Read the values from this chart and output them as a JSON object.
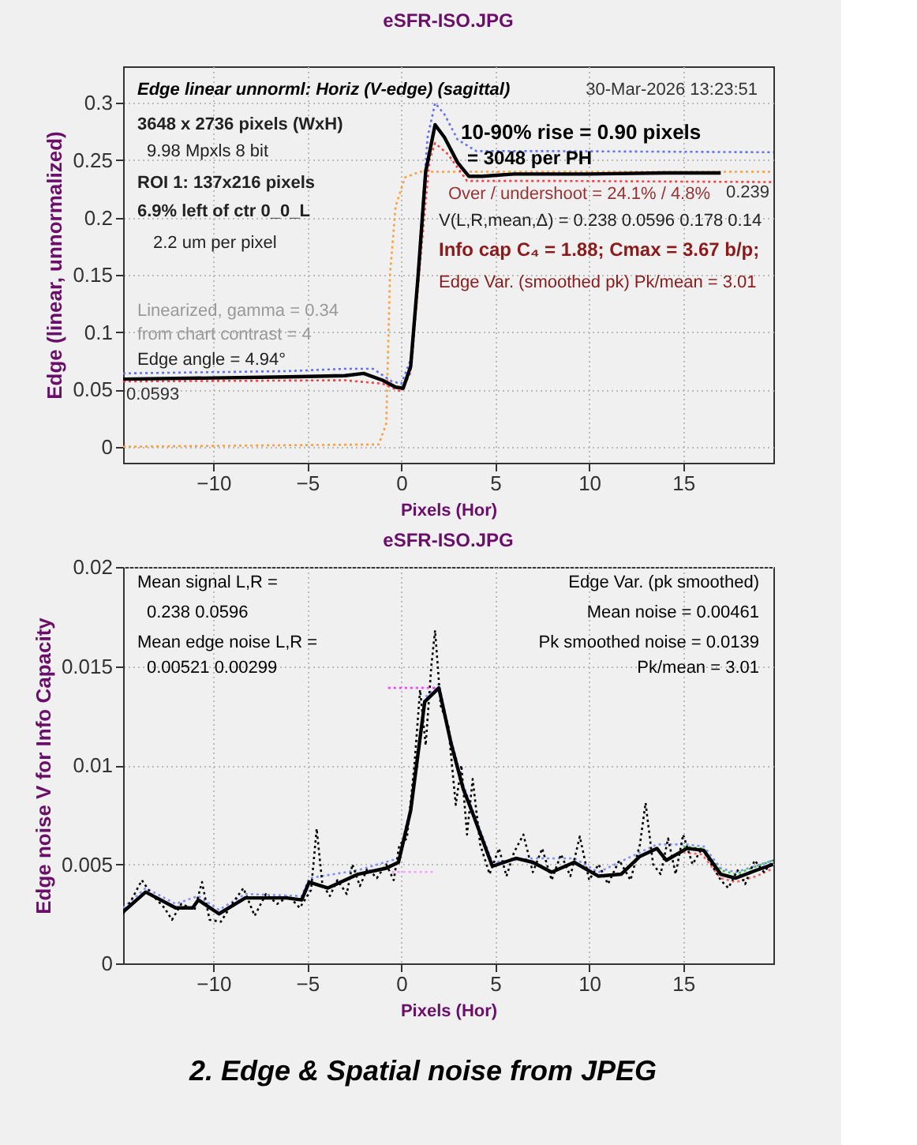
{
  "chart_data": [
    {
      "type": "line",
      "title": "eSFR-ISO.JPG",
      "xlabel": "Pixels (Hor)",
      "ylabel": "Edge (linear, unnormalized)",
      "xlim": [
        -14.8,
        19.8
      ],
      "ylim": [
        -0.014,
        0.332
      ],
      "xticks": [
        -10,
        -5,
        0,
        5,
        10,
        15
      ],
      "yticks": [
        0,
        0.05,
        0.1,
        0.15,
        0.2,
        0.25,
        0.3
      ],
      "grid": true,
      "legend": false,
      "series": [
        {
          "color": "#ffa040",
          "line_style": "dotted",
          "x": [
            -14.8,
            -1.2,
            -0.8,
            -0.6,
            -0.3,
            0.2,
            1,
            19.8
          ],
          "values": [
            0,
            0.002,
            0.02,
            0.15,
            0.21,
            0.235,
            0.24,
            0.24
          ]
        },
        {
          "color": "#6070ff",
          "line_style": "dotted",
          "x": [
            -14.8,
            -6,
            -3,
            -1.5,
            -0.5,
            0,
            0.6,
            1.0,
            1.4,
            1.8,
            2.3,
            3,
            4,
            8,
            19.8
          ],
          "values": [
            0.064,
            0.066,
            0.068,
            0.068,
            0.057,
            0.055,
            0.08,
            0.18,
            0.27,
            0.3,
            0.29,
            0.268,
            0.258,
            0.258,
            0.257
          ]
        },
        {
          "color": "#ff4040",
          "line_style": "dotted",
          "x": [
            -14.8,
            -3,
            -1,
            0,
            0.5,
            1,
            1.5,
            1.8,
            2.5,
            3.5,
            8,
            19.8
          ],
          "values": [
            0.057,
            0.058,
            0.055,
            0.048,
            0.065,
            0.16,
            0.25,
            0.265,
            0.255,
            0.232,
            0.232,
            0.231
          ]
        },
        {
          "color": "#000000",
          "line_style": "solid",
          "x": [
            -14.8,
            -10,
            -6,
            -3,
            -2,
            -1,
            -0.3,
            0.1,
            0.5,
            0.9,
            1.3,
            1.8,
            2.3,
            3,
            3.6,
            4.3,
            6,
            10,
            14,
            17
          ],
          "values": [
            0.059,
            0.06,
            0.061,
            0.062,
            0.064,
            0.058,
            0.052,
            0.051,
            0.07,
            0.15,
            0.24,
            0.281,
            0.27,
            0.248,
            0.236,
            0.236,
            0.238,
            0.238,
            0.239,
            0.239
          ]
        }
      ],
      "annotations": [
        "Edge linear unnorml: Horiz (V-edge) (sagittal)",
        "30-Mar-2026 13:23:51",
        "3648 x 2736 pixels (WxH)",
        "9.98 Mpxls   8 bit",
        "ROI 1:  137x216 pixels",
        "6.9% left of ctr  0_0_L",
        "2.2 um per pixel",
        "Linearized, gamma = 0.34",
        "from chart contrast = 4",
        "Edge angle = 4.94°",
        "0.0593",
        "0.239",
        "10-90% rise = 0.90 pixels",
        "= 3048 per PH",
        "Over / undershoot = 24.1% /  4.8%",
        "V(L,R,mean,Δ) = 0.238  0.0596  0.178  0.14",
        "Info cap C₄ = 1.88;  Cmax = 3.67 b/p;",
        "Edge Var. (smoothed pk)  Pk/mean = 3.01"
      ]
    },
    {
      "type": "line",
      "title": "eSFR-ISO.JPG",
      "xlabel": "Pixels (Hor)",
      "ylabel": "Edge noise V for Info Capacity",
      "xlim": [
        -14.8,
        19.8
      ],
      "ylim": [
        0,
        0.02
      ],
      "xticks": [
        -10,
        -5,
        0,
        5,
        10,
        15
      ],
      "yticks": [
        0,
        0.005,
        0.01,
        0.015,
        0.02
      ],
      "grid": true,
      "legend": false,
      "series": [
        {
          "color": "#8090ff",
          "line_style": "dotted",
          "x": [
            -14.8,
            -13.6,
            -12,
            -10.8,
            -9.7,
            -8.3,
            -5.3,
            -4.9,
            -2.3,
            -0.15,
            0.5,
            1.25,
            2.0,
            2.65,
            3.3,
            4.85,
            7.0,
            9.2,
            10.5,
            12.7,
            13.6,
            15.2,
            16.1,
            17,
            17.8,
            19.8
          ],
          "values": [
            0.0028,
            0.0038,
            0.003,
            0.0034,
            0.0027,
            0.0035,
            0.0034,
            0.0043,
            0.0047,
            0.0053,
            0.0079,
            0.0134,
            0.0141,
            0.0113,
            0.009,
            0.0051,
            0.0053,
            0.0053,
            0.0046,
            0.0056,
            0.006,
            0.006,
            0.0059,
            0.0048,
            0.0046,
            0.0052
          ]
        },
        {
          "color": "#ff6060",
          "line_style": "dotted",
          "x": [
            15,
            16,
            17,
            17.8,
            18.9,
            19.8
          ],
          "values": [
            0.0056,
            0.0055,
            0.0043,
            0.0041,
            0.0044,
            0.0048
          ]
        },
        {
          "color": "#40c040",
          "line_style": "dotted",
          "x": [
            15,
            16,
            17,
            17.8,
            18.9,
            19.8
          ],
          "values": [
            0.0059,
            0.0058,
            0.0047,
            0.0045,
            0.0049,
            0.0052
          ]
        },
        {
          "color": "#000000",
          "line_style": "dotted",
          "x": [
            -14.8,
            -14.3,
            -13.8,
            -13.3,
            -12.6,
            -12.2,
            -11.7,
            -11.0,
            -10.6,
            -10.2,
            -9.6,
            -9.0,
            -8.4,
            -7.8,
            -7.2,
            -6.6,
            -6.0,
            -5.4,
            -4.8,
            -4.5,
            -4.2,
            -3.8,
            -3.4,
            -2.9,
            -2.6,
            -2.2,
            -1.8,
            -1.3,
            -0.8,
            -0.4,
            -0.1,
            0.3,
            0.7,
            1.0,
            1.3,
            1.6,
            1.8,
            2.1,
            2.5,
            2.9,
            3.2,
            3.5,
            3.8,
            4.2,
            4.7,
            5.2,
            5.6,
            6.0,
            6.5,
            7.0,
            7.5,
            8.0,
            8.5,
            9.0,
            9.5,
            10.0,
            10.5,
            11.0,
            11.6,
            12.2,
            12.7,
            13.0,
            13.4,
            13.8,
            14.2,
            14.6,
            15.0,
            15.5,
            16.0,
            16.5,
            17.0,
            17.4,
            17.9,
            18.3,
            18.8,
            19.3,
            19.8
          ],
          "values": [
            0.0025,
            0.0033,
            0.0042,
            0.0035,
            0.0028,
            0.0022,
            0.003,
            0.0027,
            0.0041,
            0.0022,
            0.0021,
            0.003,
            0.0038,
            0.0024,
            0.0035,
            0.003,
            0.0034,
            0.0028,
            0.0037,
            0.0068,
            0.004,
            0.0034,
            0.0042,
            0.0035,
            0.005,
            0.0039,
            0.0048,
            0.0043,
            0.005,
            0.0042,
            0.006,
            0.0063,
            0.01,
            0.0138,
            0.011,
            0.015,
            0.0168,
            0.013,
            0.012,
            0.008,
            0.01,
            0.0065,
            0.0093,
            0.006,
            0.0045,
            0.0058,
            0.0044,
            0.0056,
            0.0065,
            0.0046,
            0.0058,
            0.0042,
            0.0055,
            0.0044,
            0.0064,
            0.0042,
            0.005,
            0.004,
            0.0052,
            0.0042,
            0.006,
            0.0081,
            0.005,
            0.0045,
            0.0063,
            0.0045,
            0.0065,
            0.005,
            0.0058,
            0.005,
            0.0042,
            0.0038,
            0.0047,
            0.004,
            0.0052,
            0.0046,
            0.0052
          ]
        },
        {
          "color": "#000000",
          "line_style": "solid",
          "x": [
            -14.8,
            -13.6,
            -12,
            -11.1,
            -10.8,
            -9.7,
            -8.3,
            -6.1,
            -5.3,
            -4.9,
            -3.9,
            -2.3,
            -0.8,
            -0.15,
            0.5,
            1.25,
            2.0,
            2.65,
            3.3,
            3.75,
            4.85,
            6.1,
            7.0,
            8.0,
            9.2,
            10.5,
            11.7,
            12.7,
            13.6,
            14.1,
            15.2,
            16.1,
            17,
            17.8,
            18.9,
            19.8
          ],
          "values": [
            0.0026,
            0.0036,
            0.0028,
            0.0028,
            0.0032,
            0.0025,
            0.0033,
            0.0033,
            0.0032,
            0.0041,
            0.0038,
            0.0045,
            0.0048,
            0.0051,
            0.0077,
            0.0132,
            0.0139,
            0.0111,
            0.0088,
            0.0077,
            0.0049,
            0.0053,
            0.0051,
            0.0046,
            0.0051,
            0.0044,
            0.0045,
            0.0054,
            0.0058,
            0.0052,
            0.0058,
            0.0057,
            0.0045,
            0.0043,
            0.0047,
            0.005
          ]
        },
        {
          "color": "#ff40ff",
          "line_style": "dotted",
          "x": [
            -0.7,
            1.8
          ],
          "values": [
            0.0139,
            0.0139
          ]
        },
        {
          "color": "#ff99ff",
          "line_style": "dotted",
          "x": [
            -0.5,
            1.7
          ],
          "values": [
            0.00461,
            0.00461
          ]
        }
      ],
      "annotations": [
        "Mean signal L,R =",
        "0.238  0.0596",
        "Mean edge noise L,R =",
        "0.00521  0.00299",
        "Edge Var. (pk smoothed)",
        "Mean noise = 0.00461",
        "Pk smoothed noise = 0.0139",
        "Pk/mean = 3.01",
        "2. Edge & Spatial noise from JPEG"
      ]
    }
  ]
}
